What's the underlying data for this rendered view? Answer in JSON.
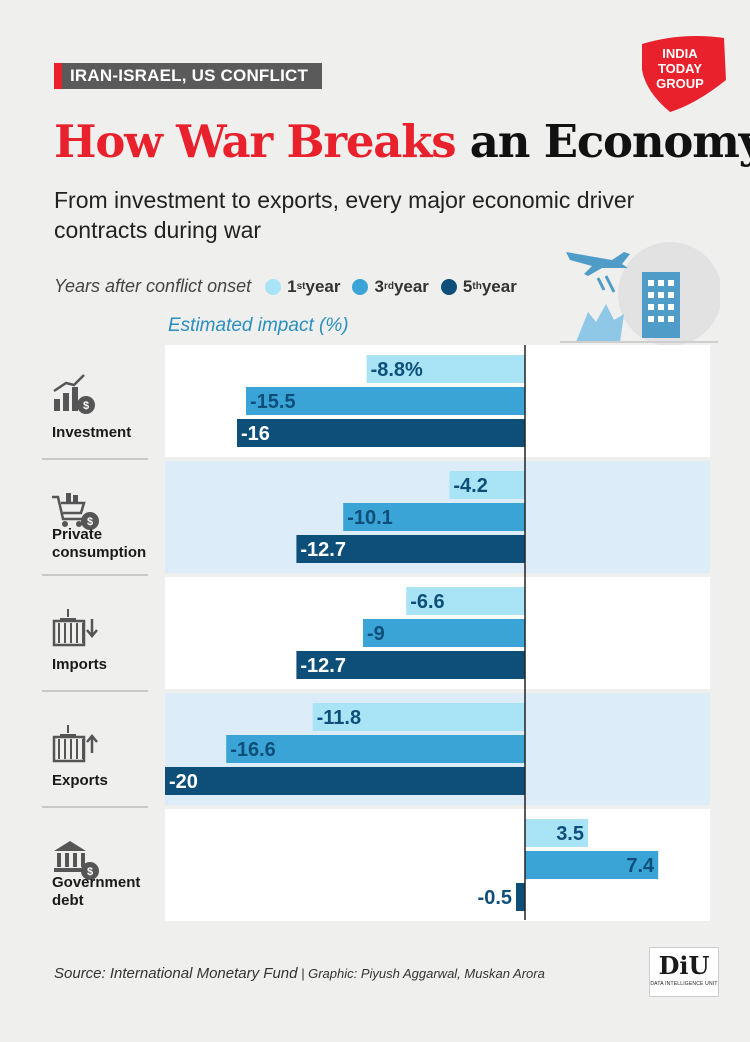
{
  "header": {
    "tag": "IRAN-ISRAEL, US CONFLICT"
  },
  "brand": {
    "logo_lines": [
      "INDIA",
      "TODAY",
      "GROUP"
    ],
    "diu_mark": "DiU",
    "diu_sub": "DATA INTELLIGENCE UNIT"
  },
  "title": {
    "red": "How War Breaks",
    "black": " an Economy"
  },
  "subtitle": "From investment to exports, every major economic driver contracts during war",
  "legend": {
    "title": "Years after conflict onset",
    "items": [
      {
        "label": "1",
        "sup": "st",
        "rest": " year",
        "color": "#a8e4f6"
      },
      {
        "label": "3",
        "sup": "rd",
        "rest": " year",
        "color": "#3aa4d6"
      },
      {
        "label": "5",
        "sup": "th",
        "rest": " year",
        "color": "#0e4f7a"
      }
    ]
  },
  "source": {
    "main": "Source: International Monetary Fund",
    "sep": " | ",
    "credit": "Graphic: Piyush Aggarwal, Muskan Arora"
  },
  "colors": {
    "light": "#a8e4f6",
    "mid": "#3aa4d6",
    "dark": "#0e4f7a",
    "band": "#dcedf9",
    "red": "#e8212c"
  },
  "chart_data": {
    "type": "bar",
    "orientation": "horizontal",
    "ylabel": "Estimated impact (%)",
    "categories": [
      "Investment",
      "Private consumption",
      "Imports",
      "Exports",
      "Government debt"
    ],
    "series": [
      {
        "name": "1st year",
        "values": [
          -8.8,
          -4.2,
          -6.6,
          -11.8,
          3.5
        ],
        "labels": [
          "-8.8%",
          "-4.2",
          "-6.6",
          "-11.8",
          "3.5"
        ]
      },
      {
        "name": "3rd year",
        "values": [
          -15.5,
          -10.1,
          -9,
          -16.6,
          7.4
        ],
        "labels": [
          "-15.5",
          "-10.1",
          "-9",
          "-16.6",
          "7.4"
        ]
      },
      {
        "name": "5th year",
        "values": [
          -16,
          -12.7,
          -12.7,
          -20,
          -0.5
        ],
        "labels": [
          "-16",
          "-12.7",
          "-12.7",
          "-20",
          "-0.5"
        ]
      }
    ],
    "category_icons": [
      "investment-icon",
      "shopping-cart-icon",
      "container-import-icon",
      "container-export-icon",
      "bank-icon"
    ]
  }
}
